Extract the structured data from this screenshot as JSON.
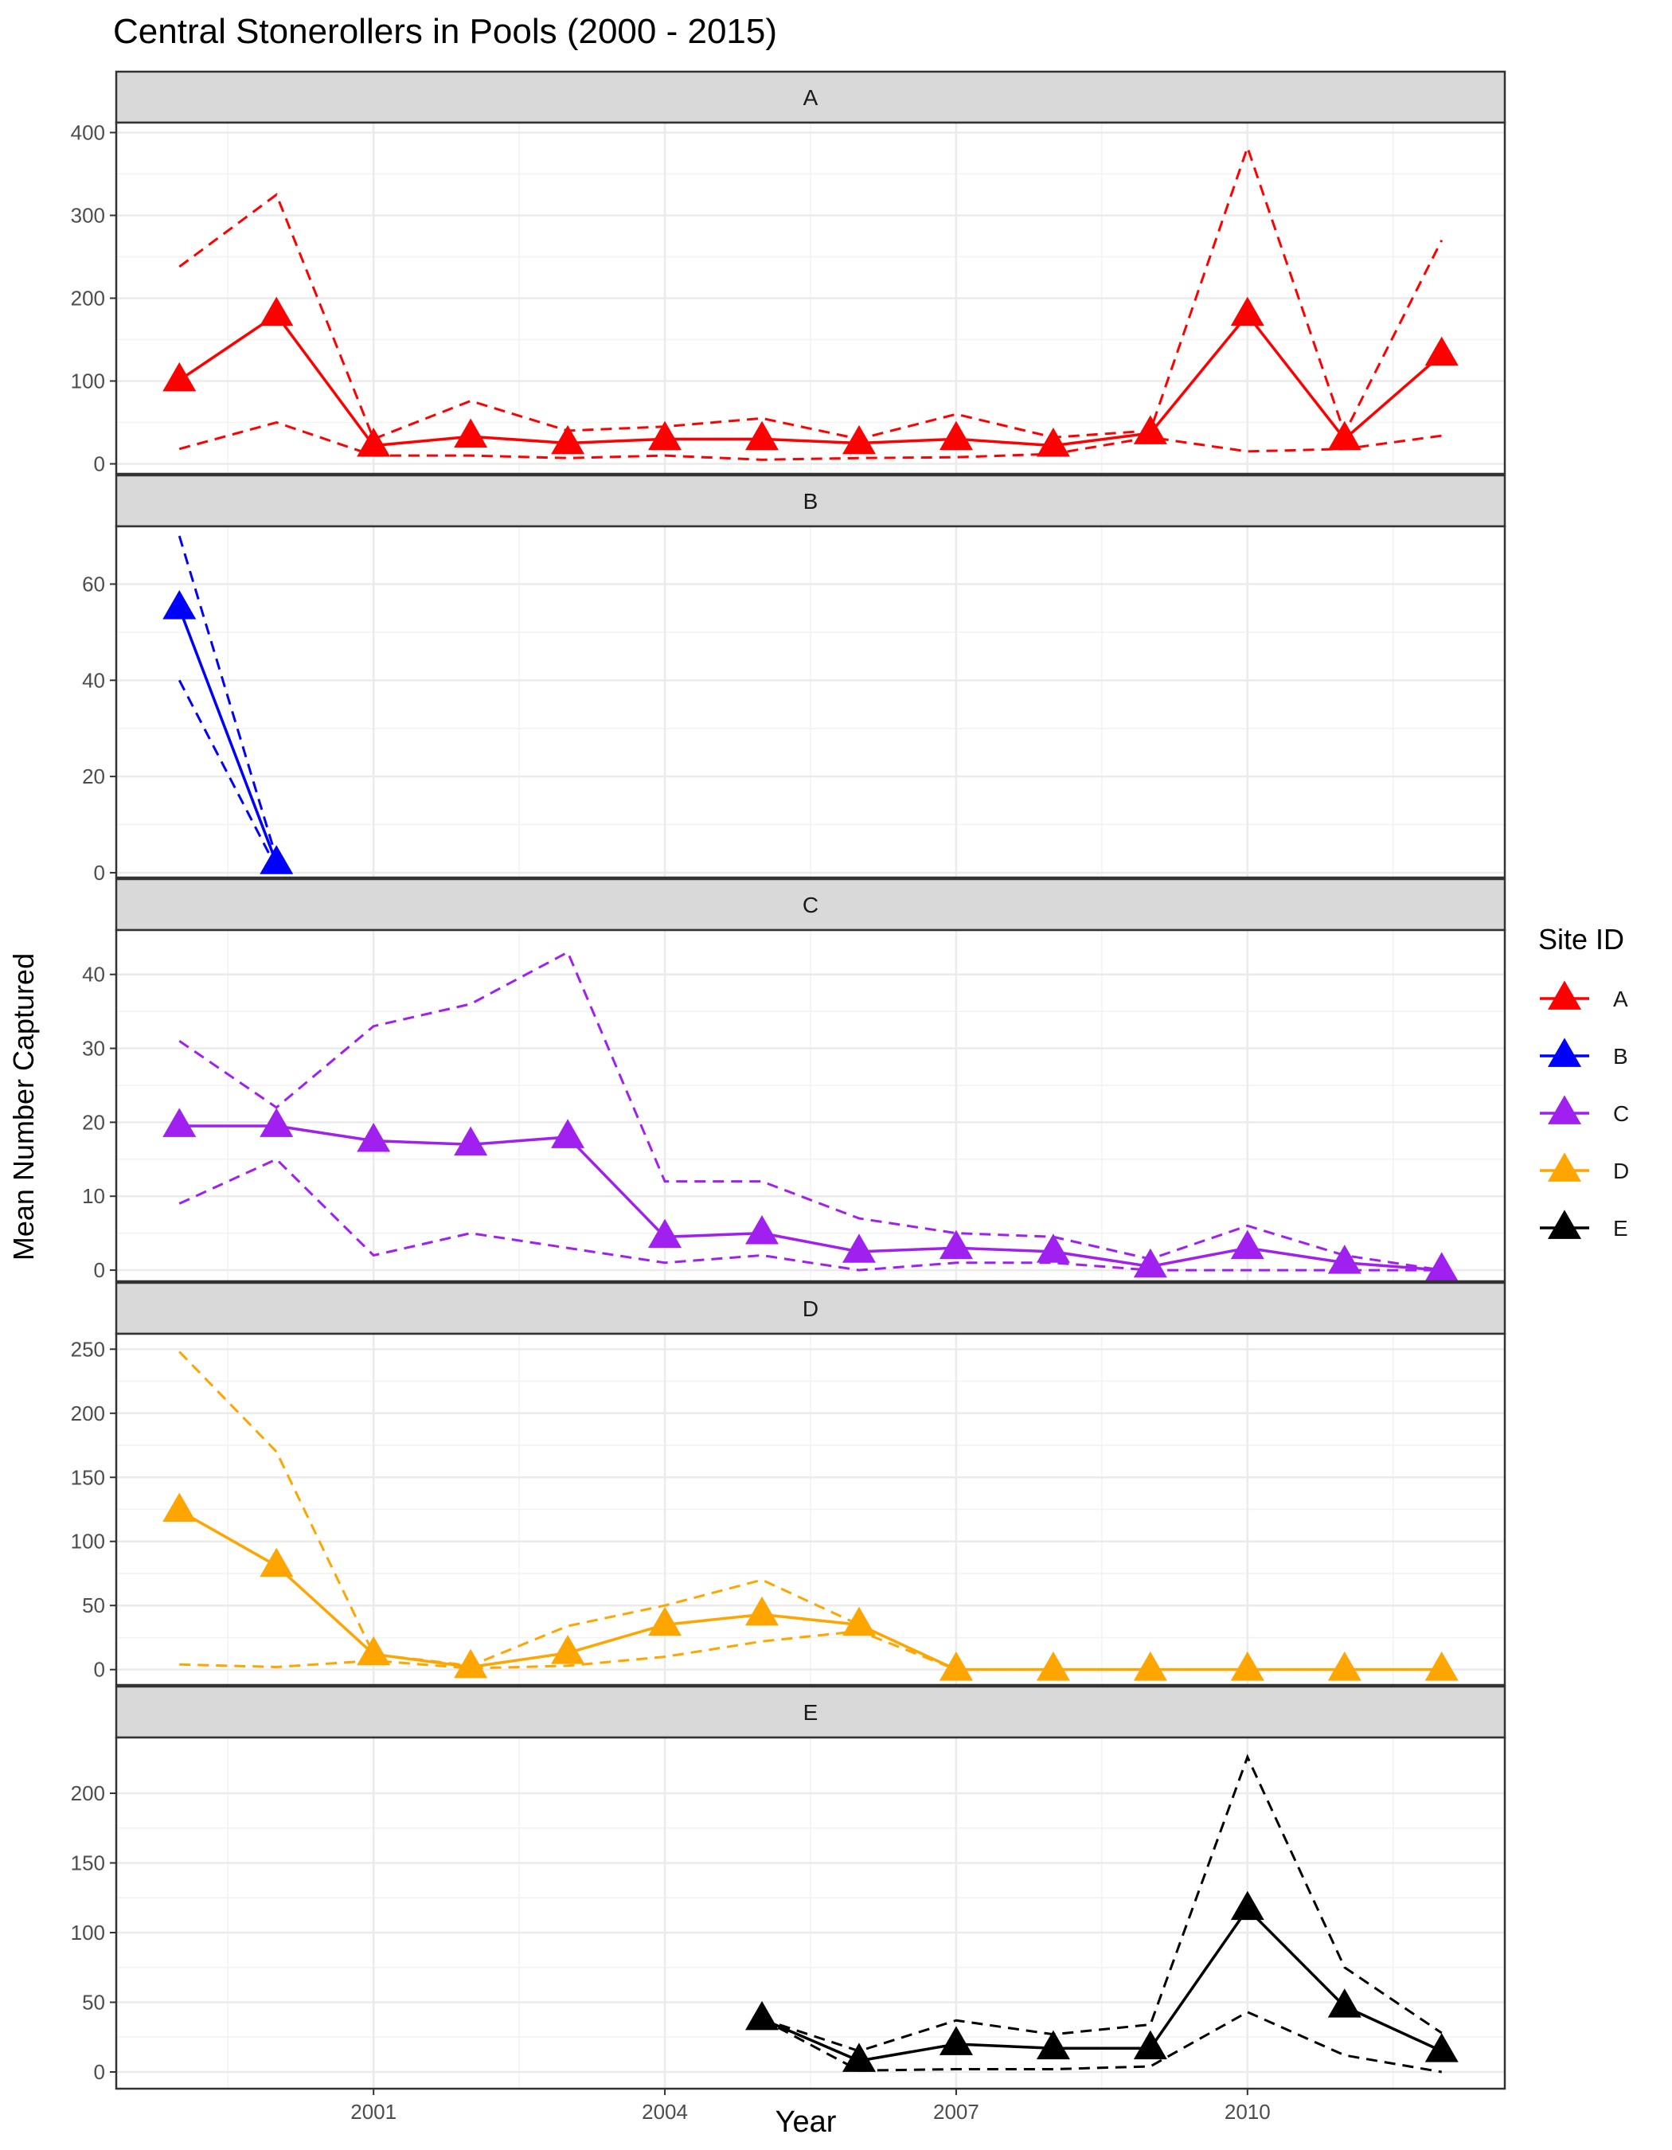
{
  "chart_data": {
    "type": "line",
    "title": "Central Stonerollers in Pools (2000 - 2015)",
    "xlabel": "Year",
    "ylabel": "Mean Number Captured",
    "x_ticks": [
      2001,
      2004,
      2007,
      2010
    ],
    "xlim": [
      1998.35,
      2012.65
    ],
    "grid": true,
    "legend": {
      "title": "Site ID",
      "position": "right",
      "entries": [
        "A",
        "B",
        "C",
        "D",
        "E"
      ]
    },
    "colors": {
      "A": "#ff0000",
      "B": "#0000ff",
      "C": "#a020f0",
      "D": "#ffa500",
      "E": "#000000"
    },
    "facets": [
      {
        "label": "A",
        "ylim": [
          -12,
          412
        ],
        "yticks": [
          0,
          100,
          200,
          300,
          400
        ],
        "x": [
          1999,
          2000,
          2001,
          2002,
          2003,
          2004,
          2005,
          2006,
          2007,
          2008,
          2009,
          2010,
          2011,
          2012
        ],
        "mean": [
          101,
          180,
          22,
          33,
          25,
          30,
          30,
          25,
          30,
          22,
          37,
          180,
          30,
          132
        ],
        "upper": [
          238,
          325,
          30,
          76,
          40,
          45,
          55,
          30,
          60,
          32,
          40,
          382,
          37,
          270
        ],
        "lower": [
          18,
          50,
          10,
          10,
          7,
          10,
          5,
          7,
          8,
          12,
          32,
          15,
          18,
          34
        ]
      },
      {
        "label": "B",
        "ylim": [
          -1,
          72
        ],
        "yticks": [
          0,
          20,
          40,
          60
        ],
        "x": [
          1999,
          2000
        ],
        "mean": [
          55,
          2
        ],
        "upper": [
          70,
          3
        ],
        "lower": [
          40,
          1
        ]
      },
      {
        "label": "C",
        "ylim": [
          -1.5,
          46
        ],
        "yticks": [
          0,
          10,
          20,
          30,
          40
        ],
        "x": [
          1999,
          2000,
          2001,
          2002,
          2003,
          2004,
          2005,
          2006,
          2007,
          2008,
          2009,
          2010,
          2011,
          2012
        ],
        "mean": [
          19.5,
          19.5,
          17.5,
          17,
          18,
          4.5,
          5,
          2.5,
          3,
          2.5,
          0.5,
          3,
          1,
          0
        ],
        "upper": [
          31,
          22,
          33,
          36,
          43,
          12,
          12,
          7,
          5,
          4.5,
          1.5,
          6,
          2,
          0
        ],
        "lower": [
          9,
          15,
          2,
          5,
          3,
          1,
          2,
          0,
          1,
          1,
          0,
          0,
          0,
          0
        ]
      },
      {
        "label": "D",
        "ylim": [
          -12,
          262
        ],
        "yticks": [
          0,
          50,
          100,
          150,
          200,
          250
        ],
        "x": [
          1999,
          2000,
          2001,
          2002,
          2003,
          2004,
          2005,
          2006,
          2007,
          2008,
          2009,
          2010,
          2011,
          2012
        ],
        "mean": [
          124,
          81,
          12,
          2,
          13,
          35,
          43,
          35,
          0,
          0,
          0,
          0,
          0,
          0
        ],
        "upper": [
          248,
          170,
          12,
          3,
          34,
          50,
          70,
          35,
          0,
          0,
          0,
          0,
          0,
          0
        ],
        "lower": [
          4,
          2,
          7,
          1,
          3,
          10,
          22,
          30,
          0,
          0,
          0,
          0,
          0,
          0
        ]
      },
      {
        "label": "E",
        "ylim": [
          -12,
          240
        ],
        "yticks": [
          0,
          50,
          100,
          150,
          200
        ],
        "x": [
          2005,
          2006,
          2007,
          2008,
          2009,
          2010,
          2011,
          2012
        ],
        "mean": [
          38,
          8,
          20,
          17,
          17,
          117,
          47,
          15
        ],
        "upper": [
          38,
          15,
          37,
          27,
          34,
          226,
          75,
          28
        ],
        "lower": [
          38,
          1,
          2,
          2,
          4,
          43,
          12,
          0
        ]
      }
    ]
  }
}
